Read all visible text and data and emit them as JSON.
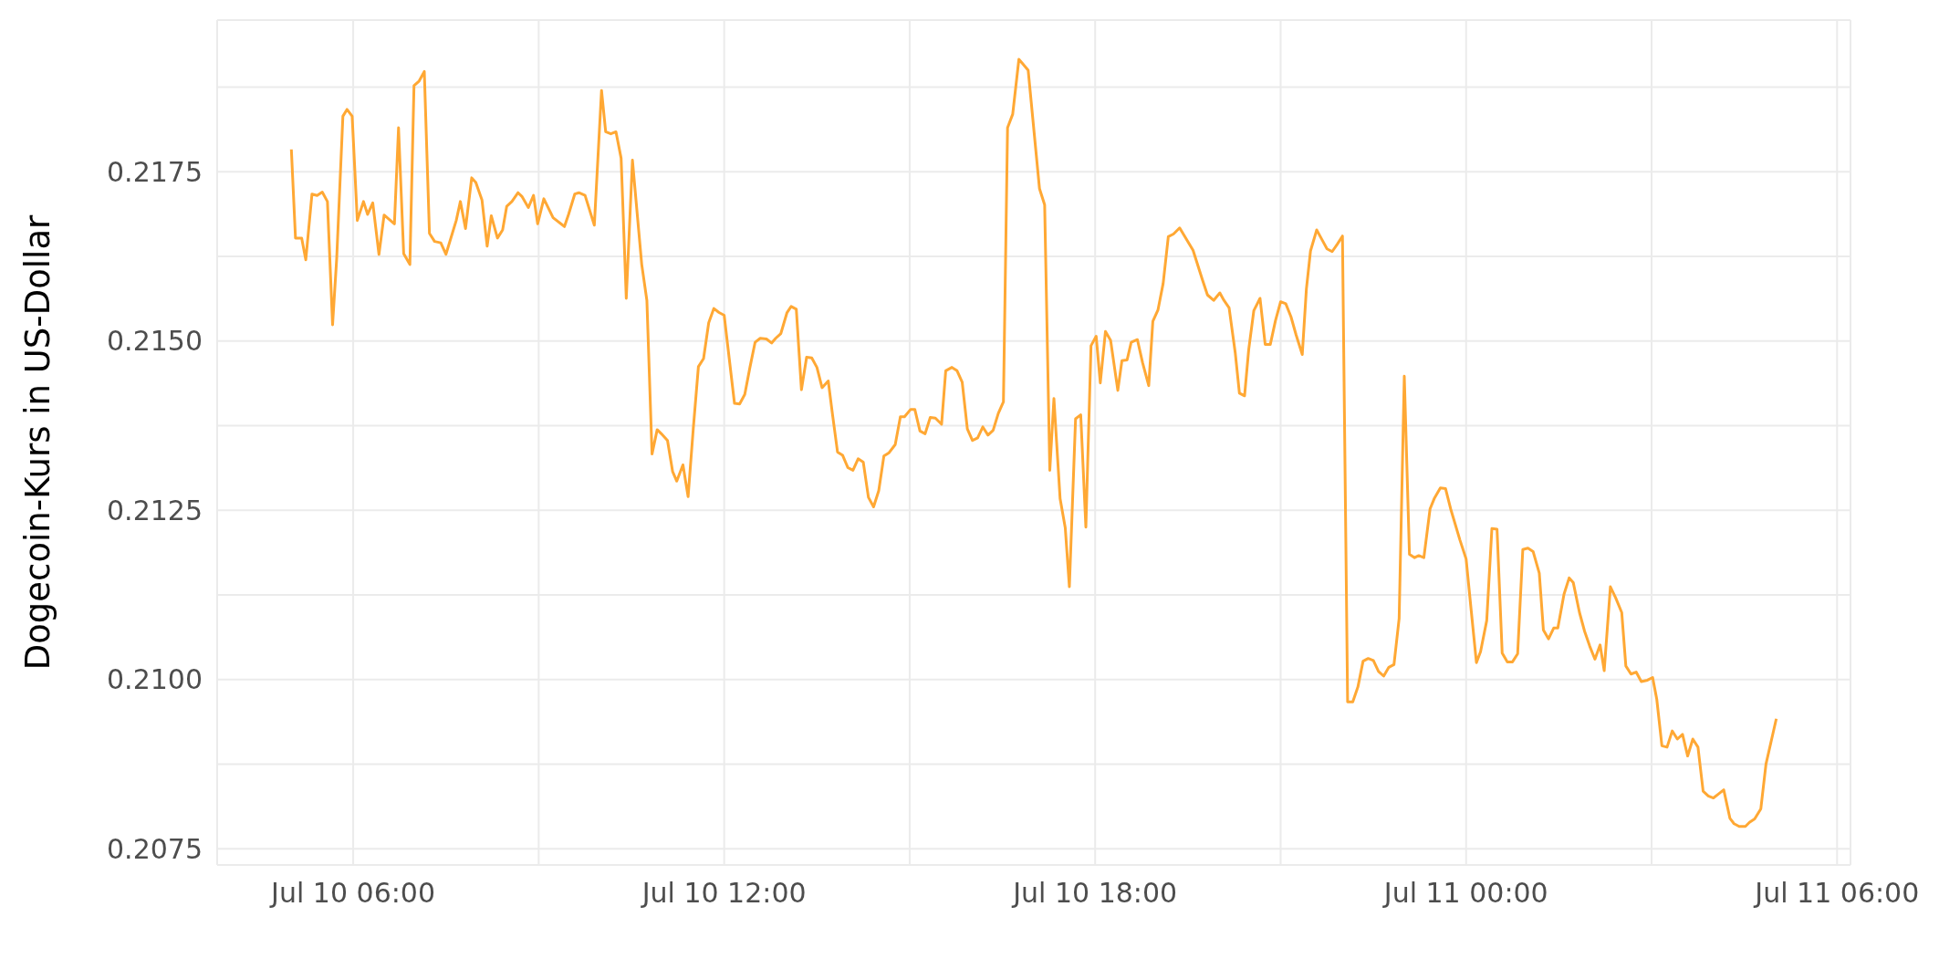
{
  "chart_data": {
    "type": "line",
    "ylabel": "Dogecoin-Kurs in US-Dollar",
    "grid": true,
    "marker": "none",
    "xlim": [
      "--07-10T03:48",
      "--07-11T06:13"
    ],
    "ylim": [
      0.20726,
      0.21974
    ],
    "xticks": [
      {
        "value": "--07-10T06:00",
        "label": "Jul 10 06:00"
      },
      {
        "value": "--07-10T09:00",
        "label": null
      },
      {
        "value": "--07-10T12:00",
        "label": "Jul 10 12:00"
      },
      {
        "value": "--07-10T15:00",
        "label": null
      },
      {
        "value": "--07-10T18:00",
        "label": "Jul 10 18:00"
      },
      {
        "value": "--07-10T21:00",
        "label": null
      },
      {
        "value": "--07-11T00:00",
        "label": "Jul 11 00:00"
      },
      {
        "value": "--07-11T03:00",
        "label": null
      },
      {
        "value": "--07-11T06:00",
        "label": "Jul 11 06:00"
      }
    ],
    "yticks": [
      0.2075,
      {
        "value": 0.20875,
        "label": null
      },
      {
        "value": 0.21,
        "label": "0.2100"
      },
      {
        "value": 0.21125,
        "label": null
      },
      0.2125,
      {
        "value": 0.21375,
        "label": null
      },
      {
        "value": 0.215,
        "label": "0.2150"
      },
      {
        "value": 0.21625,
        "label": null
      },
      0.2175,
      {
        "value": 0.21875,
        "label": null
      }
    ],
    "series": [
      {
        "color": "#ffa834",
        "x": [
          "--07-10T05:00",
          "--07-10T05:04",
          "--07-10T05:10",
          "--07-10T05:14",
          "--07-10T05:20",
          "--07-10T05:25",
          "--07-10T05:30",
          "--07-10T05:35",
          "--07-10T05:40",
          "--07-10T05:44",
          "--07-10T05:50",
          "--07-10T05:54",
          "--07-10T05:59",
          "--07-10T06:04",
          "--07-10T06:10",
          "--07-10T06:14",
          "--07-10T06:19",
          "--07-10T06:25",
          "--07-10T06:30",
          "--07-10T06:40",
          "--07-10T06:44",
          "--07-10T06:49",
          "--07-10T06:55",
          "--07-10T06:59",
          "--07-10T07:04",
          "--07-10T07:09",
          "--07-10T07:14",
          "--07-10T07:19",
          "--07-10T07:25",
          "--07-10T07:30",
          "--07-10T07:40",
          "--07-10T07:44",
          "--07-10T07:49",
          "--07-10T07:55",
          "--07-10T07:59",
          "--07-10T08:05",
          "--07-10T08:10",
          "--07-10T08:14",
          "--07-10T08:20",
          "--07-10T08:25",
          "--07-10T08:29",
          "--07-10T08:34",
          "--07-10T08:40",
          "--07-10T08:44",
          "--07-10T08:50",
          "--07-10T08:55",
          "--07-10T08:59",
          "--07-10T09:05",
          "--07-10T09:14",
          "--07-10T09:25",
          "--07-10T09:29",
          "--07-10T09:35",
          "--07-10T09:39",
          "--07-10T09:45",
          "--07-10T09:54",
          "--07-10T10:01",
          "--07-10T10:05",
          "--07-10T10:10",
          "--07-10T10:15",
          "--07-10T10:20",
          "--07-10T10:25",
          "--07-10T10:31",
          "--07-10T10:40",
          "--07-10T10:45",
          "--07-10T10:50",
          "--07-10T10:55",
          "--07-10T10:59",
          "--07-10T11:05",
          "--07-10T11:10",
          "--07-10T11:14",
          "--07-10T11:20",
          "--07-10T11:25",
          "--07-10T11:30",
          "--07-10T11:35",
          "--07-10T11:40",
          "--07-10T11:45",
          "--07-10T11:50",
          "--07-10T11:55",
          "--07-10T12:00",
          "--07-10T12:05",
          "--07-10T12:10",
          "--07-10T12:15",
          "--07-10T12:20",
          "--07-10T12:25",
          "--07-10T12:30",
          "--07-10T12:35",
          "--07-10T12:41",
          "--07-10T12:46",
          "--07-10T12:50",
          "--07-10T12:55",
          "--07-10T13:01",
          "--07-10T13:05",
          "--07-10T13:10",
          "--07-10T13:15",
          "--07-10T13:20",
          "--07-10T13:25",
          "--07-10T13:30",
          "--07-10T13:35",
          "--07-10T13:41",
          "--07-10T13:45",
          "--07-10T13:50",
          "--07-10T13:55",
          "--07-10T14:00",
          "--07-10T14:05",
          "--07-10T14:10",
          "--07-10T14:15",
          "--07-10T14:20",
          "--07-10T14:25",
          "--07-10T14:30",
          "--07-10T14:35",
          "--07-10T14:40",
          "--07-10T14:46",
          "--07-10T14:51",
          "--07-10T14:55",
          "--07-10T15:01",
          "--07-10T15:05",
          "--07-10T15:10",
          "--07-10T15:15",
          "--07-10T15:20",
          "--07-10T15:25",
          "--07-10T15:31",
          "--07-10T15:35",
          "--07-10T15:41",
          "--07-10T15:46",
          "--07-10T15:51",
          "--07-10T15:56",
          "--07-10T16:01",
          "--07-10T16:06",
          "--07-10T16:11",
          "--07-10T16:16",
          "--07-10T16:21",
          "--07-10T16:26",
          "--07-10T16:31",
          "--07-10T16:35",
          "--07-10T16:40",
          "--07-10T16:46",
          "--07-10T16:50",
          "--07-10T16:55",
          "--07-10T17:06",
          "--07-10T17:11",
          "--07-10T17:16",
          "--07-10T17:20",
          "--07-10T17:26",
          "--07-10T17:31",
          "--07-10T17:35",
          "--07-10T17:41",
          "--07-10T17:46",
          "--07-10T17:51",
          "--07-10T17:56",
          "--07-10T18:01",
          "--07-10T18:05",
          "--07-10T18:10",
          "--07-10T18:15",
          "--07-10T18:22",
          "--07-10T18:26",
          "--07-10T18:31",
          "--07-10T18:35",
          "--07-10T18:41",
          "--07-10T18:46",
          "--07-10T18:52",
          "--07-10T18:56",
          "--07-10T19:01",
          "--07-10T19:06",
          "--07-10T19:11",
          "--07-10T19:16",
          "--07-10T19:22",
          "--07-10T19:35",
          "--07-10T19:44",
          "--07-10T19:49",
          "--07-10T19:55",
          "--07-10T20:01",
          "--07-10T20:05",
          "--07-10T20:10",
          "--07-10T20:16",
          "--07-10T20:20",
          "--07-10T20:25",
          "--07-10T20:29",
          "--07-10T20:34",
          "--07-10T20:40",
          "--07-10T20:45",
          "--07-10T20:50",
          "--07-10T20:55",
          "--07-10T21:00",
          "--07-10T21:05",
          "--07-10T21:10",
          "--07-10T21:15",
          "--07-10T21:21",
          "--07-10T21:25",
          "--07-10T21:29",
          "--07-10T21:35",
          "--07-10T21:40",
          "--07-10T21:45",
          "--07-10T21:50",
          "--07-10T21:55",
          "--07-10T22:00",
          "--07-10T22:05",
          "--07-10T22:10",
          "--07-10T22:15",
          "--07-10T22:20",
          "--07-10T22:25",
          "--07-10T22:30",
          "--07-10T22:35",
          "--07-10T22:40",
          "--07-10T22:45",
          "--07-10T22:50",
          "--07-10T22:55",
          "--07-10T23:00",
          "--07-10T23:05",
          "--07-10T23:10",
          "--07-10T23:14",
          "--07-10T23:19",
          "--07-10T23:25",
          "--07-10T23:29",
          "--07-10T23:35",
          "--07-10T23:40",
          "--07-10T23:45",
          "--07-10T23:54",
          "--07-11T00:00",
          "--07-11T00:05",
          "--07-11T00:10",
          "--07-11T00:14",
          "--07-11T00:20",
          "--07-11T00:25",
          "--07-11T00:30",
          "--07-11T00:35",
          "--07-11T00:40",
          "--07-11T00:45",
          "--07-11T00:50",
          "--07-11T00:55",
          "--07-11T01:00",
          "--07-11T01:05",
          "--07-11T01:11",
          "--07-11T01:15",
          "--07-11T01:20",
          "--07-11T01:25",
          "--07-11T01:29",
          "--07-11T01:35",
          "--07-11T01:40",
          "--07-11T01:44",
          "--07-11T01:50",
          "--07-11T01:55",
          "--07-11T02:00",
          "--07-11T02:05",
          "--07-11T02:10",
          "--07-11T02:14",
          "--07-11T02:20",
          "--07-11T02:25",
          "--07-11T02:31",
          "--07-11T02:35",
          "--07-11T02:40",
          "--07-11T02:45",
          "--07-11T02:50",
          "--07-11T02:56",
          "--07-11T03:01",
          "--07-11T03:05",
          "--07-11T03:10",
          "--07-11T03:15",
          "--07-11T03:20",
          "--07-11T03:25",
          "--07-11T03:30",
          "--07-11T03:35",
          "--07-11T03:40",
          "--07-11T03:45",
          "--07-11T03:50",
          "--07-11T03:55",
          "--07-11T04:00",
          "--07-11T04:05",
          "--07-11T04:10",
          "--07-11T04:16",
          "--07-11T04:20",
          "--07-11T04:25",
          "--07-11T04:31",
          "--07-11T04:35",
          "--07-11T04:40",
          "--07-11T04:46",
          "--07-11T04:51",
          "--07-11T05:01"
        ],
        "values": [
          0.21783,
          0.21652,
          0.21652,
          0.2162,
          0.21717,
          0.21715,
          0.2172,
          0.21706,
          0.21524,
          0.21622,
          0.21832,
          0.21842,
          0.21832,
          0.21678,
          0.21706,
          0.21687,
          0.21704,
          0.21628,
          0.21686,
          0.21673,
          0.21815,
          0.21629,
          0.21613,
          0.21877,
          0.21884,
          0.21898,
          0.21659,
          0.21647,
          0.21645,
          0.21628,
          0.21678,
          0.21706,
          0.21666,
          0.21741,
          0.21734,
          0.21708,
          0.2164,
          0.21685,
          0.21652,
          0.21664,
          0.21699,
          0.21706,
          0.21719,
          0.21713,
          0.21697,
          0.21715,
          0.21673,
          0.2171,
          0.21682,
          0.21669,
          0.21687,
          0.21717,
          0.21719,
          0.21715,
          0.21671,
          0.2187,
          0.21809,
          0.21806,
          0.21809,
          0.2177,
          0.21563,
          0.21767,
          0.21613,
          0.2156,
          0.21333,
          0.21369,
          0.21363,
          0.21353,
          0.21307,
          0.21293,
          0.21317,
          0.2127,
          0.2137,
          0.21462,
          0.21474,
          0.21527,
          0.21548,
          0.21542,
          0.21538,
          0.21473,
          0.21408,
          0.21407,
          0.21421,
          0.21461,
          0.21498,
          0.21504,
          0.21503,
          0.21497,
          0.21504,
          0.21511,
          0.21542,
          0.21551,
          0.21547,
          0.21428,
          0.21476,
          0.21475,
          0.21461,
          0.21431,
          0.21441,
          0.21393,
          0.21336,
          0.21331,
          0.21313,
          0.21309,
          0.21326,
          0.21321,
          0.21269,
          0.21255,
          0.21279,
          0.2133,
          0.21335,
          0.21347,
          0.21388,
          0.21388,
          0.21399,
          0.21399,
          0.21367,
          0.21363,
          0.21387,
          0.21386,
          0.21377,
          0.21456,
          0.21461,
          0.21456,
          0.21439,
          0.2137,
          0.21353,
          0.21357,
          0.21373,
          0.21361,
          0.21368,
          0.21393,
          0.2141,
          0.21815,
          0.21835,
          0.21916,
          0.21909,
          0.219,
          0.21725,
          0.21701,
          0.21309,
          0.21415,
          0.21267,
          0.21224,
          0.21137,
          0.21385,
          0.21391,
          0.21225,
          0.21493,
          0.21507,
          0.21438,
          0.21514,
          0.21501,
          0.21427,
          0.21471,
          0.21472,
          0.21498,
          0.21502,
          0.21468,
          0.21434,
          0.21529,
          0.21546,
          0.21585,
          0.21654,
          0.21658,
          0.21667,
          0.21634,
          0.21591,
          0.21568,
          0.2156,
          0.21571,
          0.2156,
          0.21549,
          0.21482,
          0.21423,
          0.21419,
          0.21487,
          0.21545,
          0.21563,
          0.21495,
          0.21495,
          0.2153,
          0.21558,
          0.21555,
          0.21536,
          0.21509,
          0.2148,
          0.21577,
          0.21633,
          0.21664,
          0.2165,
          0.21636,
          0.21632,
          0.21643,
          0.21655,
          0.20967,
          0.20967,
          0.20989,
          0.21027,
          0.21031,
          0.21028,
          0.21012,
          0.21005,
          0.21018,
          0.21022,
          0.2109,
          0.21448,
          0.21185,
          0.2118,
          0.21183,
          0.2118,
          0.21252,
          0.21267,
          0.21283,
          0.21282,
          0.21252,
          0.21206,
          0.21178,
          0.21101,
          0.21025,
          0.21041,
          0.21087,
          0.21223,
          0.21222,
          0.21039,
          0.21026,
          0.21026,
          0.21038,
          0.21192,
          0.21194,
          0.21189,
          0.21157,
          0.21073,
          0.2106,
          0.21076,
          0.21076,
          0.21126,
          0.2115,
          0.21143,
          0.21099,
          0.21071,
          0.21049,
          0.2103,
          0.21051,
          0.21013,
          0.21137,
          0.21121,
          0.21099,
          0.2102,
          0.21008,
          0.21011,
          0.20997,
          0.20999,
          0.21003,
          0.20971,
          0.20902,
          0.209,
          0.20924,
          0.20912,
          0.20919,
          0.20887,
          0.20912,
          0.209,
          0.20835,
          0.20828,
          0.20825,
          0.20831,
          0.20837,
          0.20795,
          0.20787,
          0.20783,
          0.20783,
          0.20789,
          0.20794,
          0.20809,
          0.20875,
          0.20942
        ]
      }
    ]
  }
}
